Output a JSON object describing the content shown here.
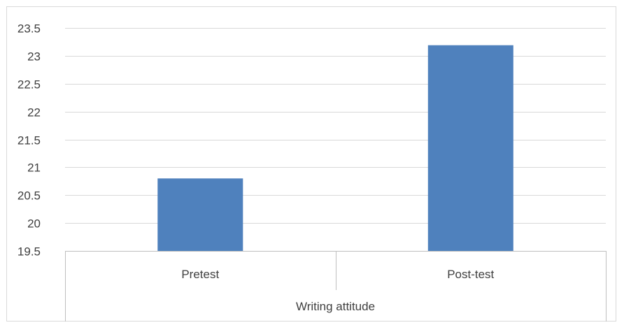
{
  "chart_data": {
    "type": "bar",
    "categories": [
      "Pretest",
      "Post-test"
    ],
    "series": [
      {
        "values": [
          20.8,
          23.19
        ],
        "color": "#4f81bd"
      }
    ],
    "group_label": "Writing attitude",
    "ylim": [
      19.5,
      23.5
    ],
    "yticks": [
      "19.5",
      "20",
      "20.5",
      "21",
      "21.5",
      "22",
      "22.5",
      "23",
      "23.5"
    ],
    "grid": true,
    "legend": "none",
    "colors": {
      "bar": "#4f81bd",
      "grid": "#d9d9d9",
      "axis": "#bfbfbf",
      "text": "#404040"
    }
  }
}
